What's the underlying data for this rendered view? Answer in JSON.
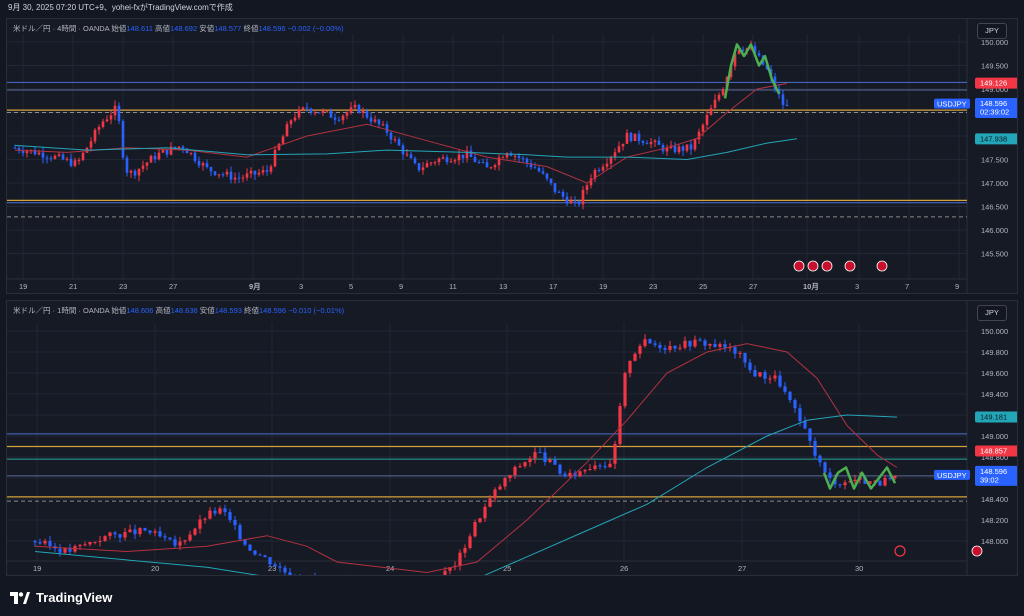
{
  "header": {
    "text": "9月 30, 2025 07:20 UTC+9、yohei-fxがTradingView.comで作成"
  },
  "footer": {
    "brand": "TradingView"
  },
  "colors": {
    "up": "#f23645",
    "down": "#2962ff",
    "ma_short": "#b2323f",
    "ma_long": "#22a6b8",
    "line_orange": "#d6a13a",
    "line_blue": "#4a6fd1",
    "line_green": "#26a69a",
    "pattern": "#4caf50"
  },
  "panes": [
    {
      "legend": {
        "symbol": "米ドル／円 · 4時間 · OANDA",
        "open_label": "始値",
        "open": "148.611",
        "high_label": "高値",
        "high": "148.692",
        "low_label": "安値",
        "low": "148.577",
        "close_label": "終値",
        "close": "148.596",
        "change": "−0.002 (−0.00%)"
      },
      "currency_button": "JPY",
      "price_ticks": [
        "150.000",
        "149.500",
        "149.000",
        "148.500",
        "148.000",
        "147.500",
        "147.000",
        "146.500",
        "146.000",
        "145.500"
      ],
      "date_ticks": [
        "19",
        "21",
        "23",
        "27",
        "9月",
        "3",
        "5",
        "9",
        "11",
        "13",
        "17",
        "19",
        "23",
        "25",
        "27",
        "10月",
        "3",
        "7",
        "9"
      ],
      "price_labels": {
        "upper_line": "149.126",
        "symbol": "USDJPY",
        "last": "148.596",
        "countdown": "02:39:02",
        "ma_long": "147.938"
      }
    },
    {
      "legend": {
        "symbol": "米ドル／円 · 1時間 · OANDA",
        "open_label": "始値",
        "open": "148.606",
        "high_label": "高値",
        "high": "148.636",
        "low_label": "安値",
        "low": "148.593",
        "close_label": "終値",
        "close": "148.596",
        "change": "−0.010 (−0.01%)"
      },
      "currency_button": "JPY",
      "price_ticks": [
        "150.000",
        "149.800",
        "149.600",
        "149.400",
        "149.200",
        "149.000",
        "148.800",
        "148.600",
        "148.400",
        "148.200",
        "148.000"
      ],
      "date_ticks": [
        "19",
        "20",
        "23",
        "24",
        "25",
        "26",
        "27",
        "30"
      ],
      "price_labels": {
        "ma_long": "149.181",
        "upper_line": "148.857",
        "symbol": "USDJPY",
        "last": "148.596",
        "countdown": "39:02"
      }
    }
  ]
}
